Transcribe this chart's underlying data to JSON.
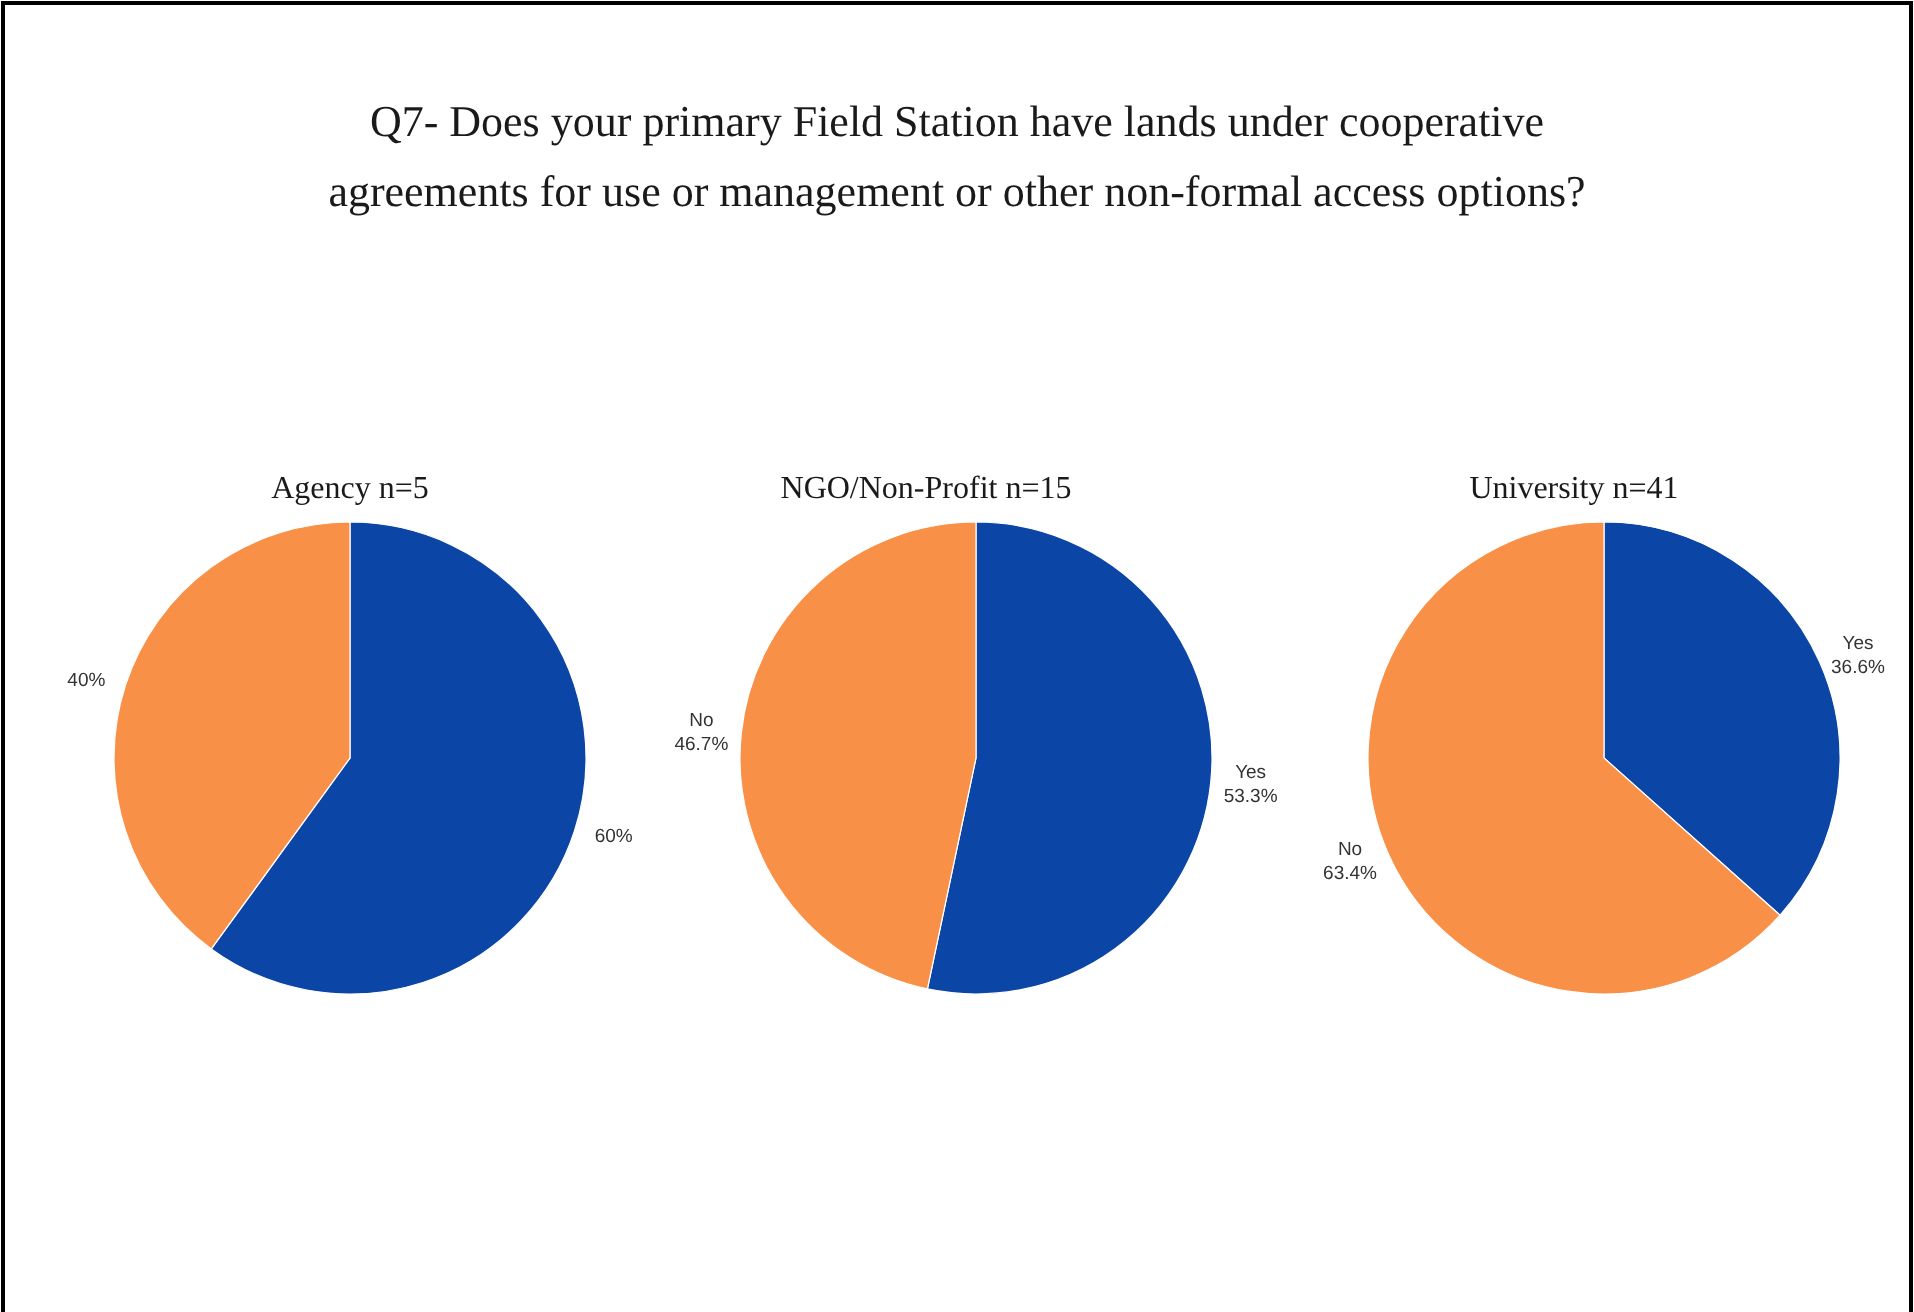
{
  "chart_data": [
    {
      "type": "pie",
      "title": "Q7- Does your primary Field Station have lands under cooperative agreements for use or management or other non-formal access options?",
      "subtitle": "Agency n=5",
      "categories": [
        null,
        null
      ],
      "values": [
        60,
        40
      ],
      "colors": [
        "#0b46a6",
        "#f89147"
      ],
      "value_labels": [
        "60%",
        "40%"
      ]
    },
    {
      "type": "pie",
      "subtitle": "NGO/Non-Profit n=15",
      "categories": [
        "Yes",
        "No"
      ],
      "values": [
        53.3,
        46.7
      ],
      "colors": [
        "#0b46a6",
        "#f89147"
      ],
      "value_labels": [
        "53.3%",
        "46.7%"
      ]
    },
    {
      "type": "pie",
      "subtitle": "University n=41",
      "categories": [
        "Yes",
        "No"
      ],
      "values": [
        36.6,
        63.4
      ],
      "colors": [
        "#0b46a6",
        "#f89147"
      ],
      "value_labels": [
        "36.6%",
        "63.4%"
      ]
    }
  ]
}
